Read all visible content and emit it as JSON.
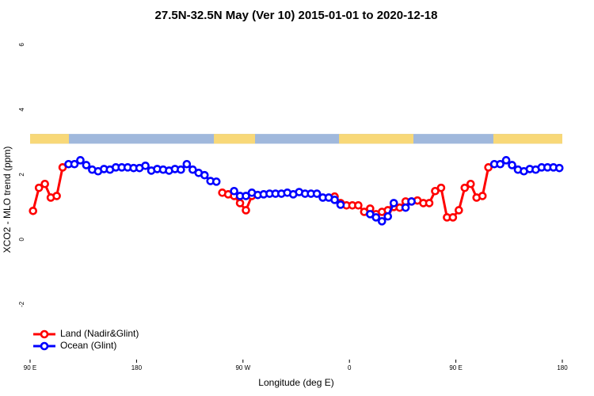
{
  "chart_data": {
    "type": "line",
    "title": "27.5N-32.5N May (Ver 10)   2015-01-01 to 2020-12-18",
    "x_label": "Longitude (deg E)",
    "y_label": "XCO2 - MLO trend (ppm)",
    "x": [
      92.5,
      97.5,
      102.5,
      107.5,
      112.5,
      117.5,
      122.5,
      127.5,
      132.5,
      137.5,
      142.5,
      147.5,
      152.5,
      157.5,
      162.5,
      167.5,
      172.5,
      177.5,
      182.5,
      187.5,
      192.5,
      197.5,
      202.5,
      207.5,
      212.5,
      217.5,
      222.5,
      227.5,
      232.5,
      237.5,
      242.5,
      247.5,
      252.5,
      257.5,
      262.5,
      267.5,
      272.5,
      277.5,
      282.5,
      287.5,
      292.5,
      297.5,
      302.5,
      307.5,
      312.5,
      317.5,
      322.5,
      327.5,
      332.5,
      337.5,
      342.5,
      347.5,
      352.5,
      357.5,
      362.5,
      367.5,
      372.5,
      377.5,
      382.5,
      387.5,
      392.5,
      397.5,
      402.5,
      407.5,
      412.5,
      417.5,
      422.5,
      427.5,
      432.5,
      437.5,
      442.5,
      447.5,
      452.5,
      457.5,
      462.5,
      467.5,
      472.5,
      477.5,
      482.5,
      487.5,
      492.5,
      497.5,
      502.5,
      507.5,
      512.5,
      517.5,
      522.5,
      527.5,
      532.5,
      537.5
    ],
    "series": [
      {
        "name": "Land (Nadir&Glint)",
        "color": "#ff0000",
        "values": [
          0.88,
          1.59,
          1.71,
          1.29,
          1.34,
          2.22,
          null,
          null,
          null,
          null,
          null,
          null,
          null,
          null,
          null,
          null,
          null,
          null,
          null,
          null,
          null,
          null,
          null,
          null,
          null,
          null,
          null,
          null,
          null,
          null,
          null,
          null,
          1.44,
          1.39,
          1.34,
          1.12,
          0.9,
          1.34,
          null,
          null,
          null,
          null,
          null,
          null,
          null,
          null,
          null,
          null,
          null,
          null,
          null,
          1.32,
          1.12,
          1.05,
          1.05,
          1.05,
          0.85,
          0.95,
          0.78,
          0.85,
          0.9,
          1.0,
          0.98,
          1.17,
          1.17,
          1.2,
          1.12,
          1.12,
          1.49,
          1.59,
          0.68,
          0.68,
          0.9,
          1.59,
          1.71,
          1.29,
          1.34,
          2.22,
          null,
          null,
          null,
          null,
          null,
          null,
          null,
          null,
          null,
          null,
          null,
          null
        ]
      },
      {
        "name": "Ocean (Glint)",
        "color": "#0000ff",
        "values": [
          null,
          null,
          null,
          null,
          null,
          null,
          2.32,
          2.32,
          2.44,
          2.29,
          2.15,
          2.1,
          2.17,
          2.15,
          2.22,
          2.22,
          2.22,
          2.2,
          2.2,
          2.27,
          2.12,
          2.17,
          2.15,
          2.12,
          2.17,
          2.15,
          2.32,
          2.15,
          2.05,
          1.98,
          1.8,
          1.78,
          null,
          null,
          1.49,
          1.34,
          1.34,
          1.44,
          1.37,
          1.39,
          1.41,
          1.41,
          1.41,
          1.44,
          1.39,
          1.46,
          1.41,
          1.41,
          1.41,
          1.29,
          1.29,
          1.22,
          1.07,
          null,
          null,
          null,
          null,
          0.78,
          0.68,
          0.56,
          0.71,
          1.12,
          null,
          0.98,
          1.17,
          null,
          null,
          null,
          null,
          null,
          null,
          null,
          null,
          null,
          null,
          null,
          null,
          null,
          2.32,
          2.32,
          2.44,
          2.29,
          2.15,
          2.1,
          2.17,
          2.15,
          2.22,
          2.22,
          2.22,
          2.2
        ]
      }
    ],
    "xlim": [
      90,
      540
    ],
    "xticks": [
      {
        "value": 90,
        "label": "90 E"
      },
      {
        "value": 180,
        "label": "180"
      },
      {
        "value": 270,
        "label": "90 W"
      },
      {
        "value": 360,
        "label": "0"
      },
      {
        "value": 450,
        "label": "90 E"
      },
      {
        "value": 540,
        "label": "180"
      }
    ],
    "ylim": [
      -3.7,
      6.4
    ],
    "yticks": [
      -2,
      0,
      2,
      4,
      6
    ],
    "land_mask_band": [
      2.95,
      3.25
    ],
    "ocean_color": "#a0b8dc",
    "land_color": "#f8d878",
    "land_ranges": [
      [
        90,
        122.8
      ],
      [
        245.4,
        280.2
      ],
      [
        351.2,
        414.1
      ],
      [
        481.7,
        540
      ]
    ],
    "legend": "bottom-left"
  }
}
